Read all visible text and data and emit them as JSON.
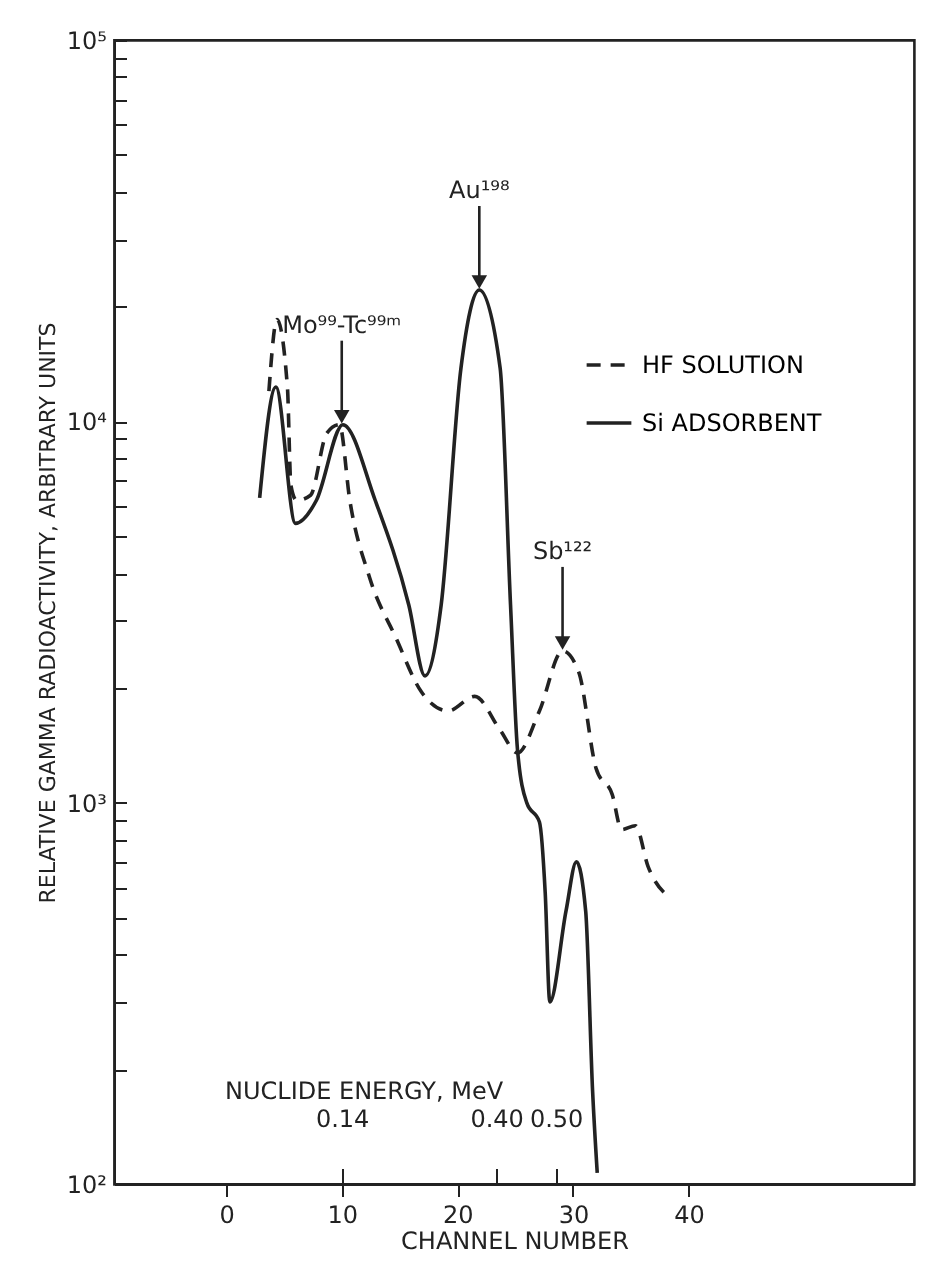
{
  "chart_data": {
    "type": "line",
    "xlabel": "CHANNEL NUMBER",
    "ylabel": "RELATIVE GAMMA RADIOACTIVITY, ARBITRARY UNITS",
    "xlim": [
      -9.7,
      59.5
    ],
    "xticks": [
      0,
      10,
      20,
      30,
      40
    ],
    "x2label": "NUCLIDE ENERGY, MeV",
    "x2lim": [
      -0.243,
      1.103
    ],
    "x2ticks": [
      {
        "value": 0.14,
        "label": "0.14"
      },
      {
        "value": 0.4,
        "label": "0.40"
      },
      {
        "value": 0.5,
        "label": "0.50"
      }
    ],
    "ylim": [
      100,
      100000
    ],
    "log": true,
    "yticks": [
      {
        "value": 100,
        "label": "10²"
      },
      {
        "value": 200,
        "label": null
      },
      {
        "value": 300,
        "label": null
      },
      {
        "value": 400,
        "label": null
      },
      {
        "value": 500,
        "label": null
      },
      {
        "value": 600,
        "label": null
      },
      {
        "value": 700,
        "label": null
      },
      {
        "value": 800,
        "label": null
      },
      {
        "value": 900,
        "label": null
      },
      {
        "value": 1000,
        "label": "10³"
      },
      {
        "value": 2000,
        "label": null
      },
      {
        "value": 3000,
        "label": null
      },
      {
        "value": 4000,
        "label": null
      },
      {
        "value": 5000,
        "label": null
      },
      {
        "value": 6000,
        "label": null
      },
      {
        "value": 7000,
        "label": null
      },
      {
        "value": 8000,
        "label": null
      },
      {
        "value": 9000,
        "label": null
      },
      {
        "value": 10000,
        "label": "10⁴"
      },
      {
        "value": 20000,
        "label": null
      },
      {
        "value": 30000,
        "label": null
      },
      {
        "value": 40000,
        "label": null
      },
      {
        "value": 50000,
        "label": null
      },
      {
        "value": 60000,
        "label": null
      },
      {
        "value": 70000,
        "label": null
      },
      {
        "value": 80000,
        "label": null
      },
      {
        "value": 90000,
        "label": null
      },
      {
        "value": 100000,
        "label": "10⁵"
      }
    ],
    "grid": false,
    "legend": "top right",
    "marker": "none",
    "series": [
      {
        "name": "HF SOLUTION",
        "color": "#222222",
        "line_style": "dashed",
        "x": [
          3.7,
          4.4,
          5.3,
          5.6,
          6.1,
          7.3,
          8.7,
          9.8,
          10.7,
          12.4,
          14.7,
          16.9,
          19.2,
          21.5,
          23.7,
          25.2,
          27.1,
          29.1,
          30.5,
          32.0,
          33.4,
          34.2,
          35.4,
          36.5,
          38.5
        ],
        "values": [
          12000,
          18500,
          12300,
          6800,
          6200,
          6400,
          9300,
          9800,
          6200,
          3900,
          2700,
          1950,
          1740,
          1900,
          1550,
          1350,
          1740,
          2500,
          2200,
          1230,
          1050,
          850,
          870,
          680,
          560
        ]
      },
      {
        "name": "Si ADSORBENT",
        "color": "#222222",
        "line_style": "solid",
        "x": [
          2.9,
          4.3,
          6.0,
          7.8,
          10.1,
          12.9,
          15.8,
          17.2,
          18.6,
          20.3,
          21.9,
          23.7,
          24.6,
          25.2,
          26.0,
          27.1,
          27.6,
          28.0,
          29.4,
          30.3,
          31.1,
          31.7,
          32.1
        ],
        "values": [
          6300,
          12300,
          5400,
          6200,
          9800,
          6200,
          3300,
          2150,
          3300,
          13700,
          22100,
          13800,
          3300,
          1380,
          1000,
          890,
          580,
          300,
          520,
          700,
          520,
          175,
          107
        ]
      }
    ],
    "annotations": [
      {
        "text": "Mo⁹⁹-Tc⁹⁹ᵐ",
        "x": 10,
        "y": 9800
      },
      {
        "text": "Au¹⁹⁸",
        "x": 21.9,
        "y": 22100
      },
      {
        "text": "Sb¹²²",
        "x": 29.1,
        "y": 2500
      }
    ]
  }
}
